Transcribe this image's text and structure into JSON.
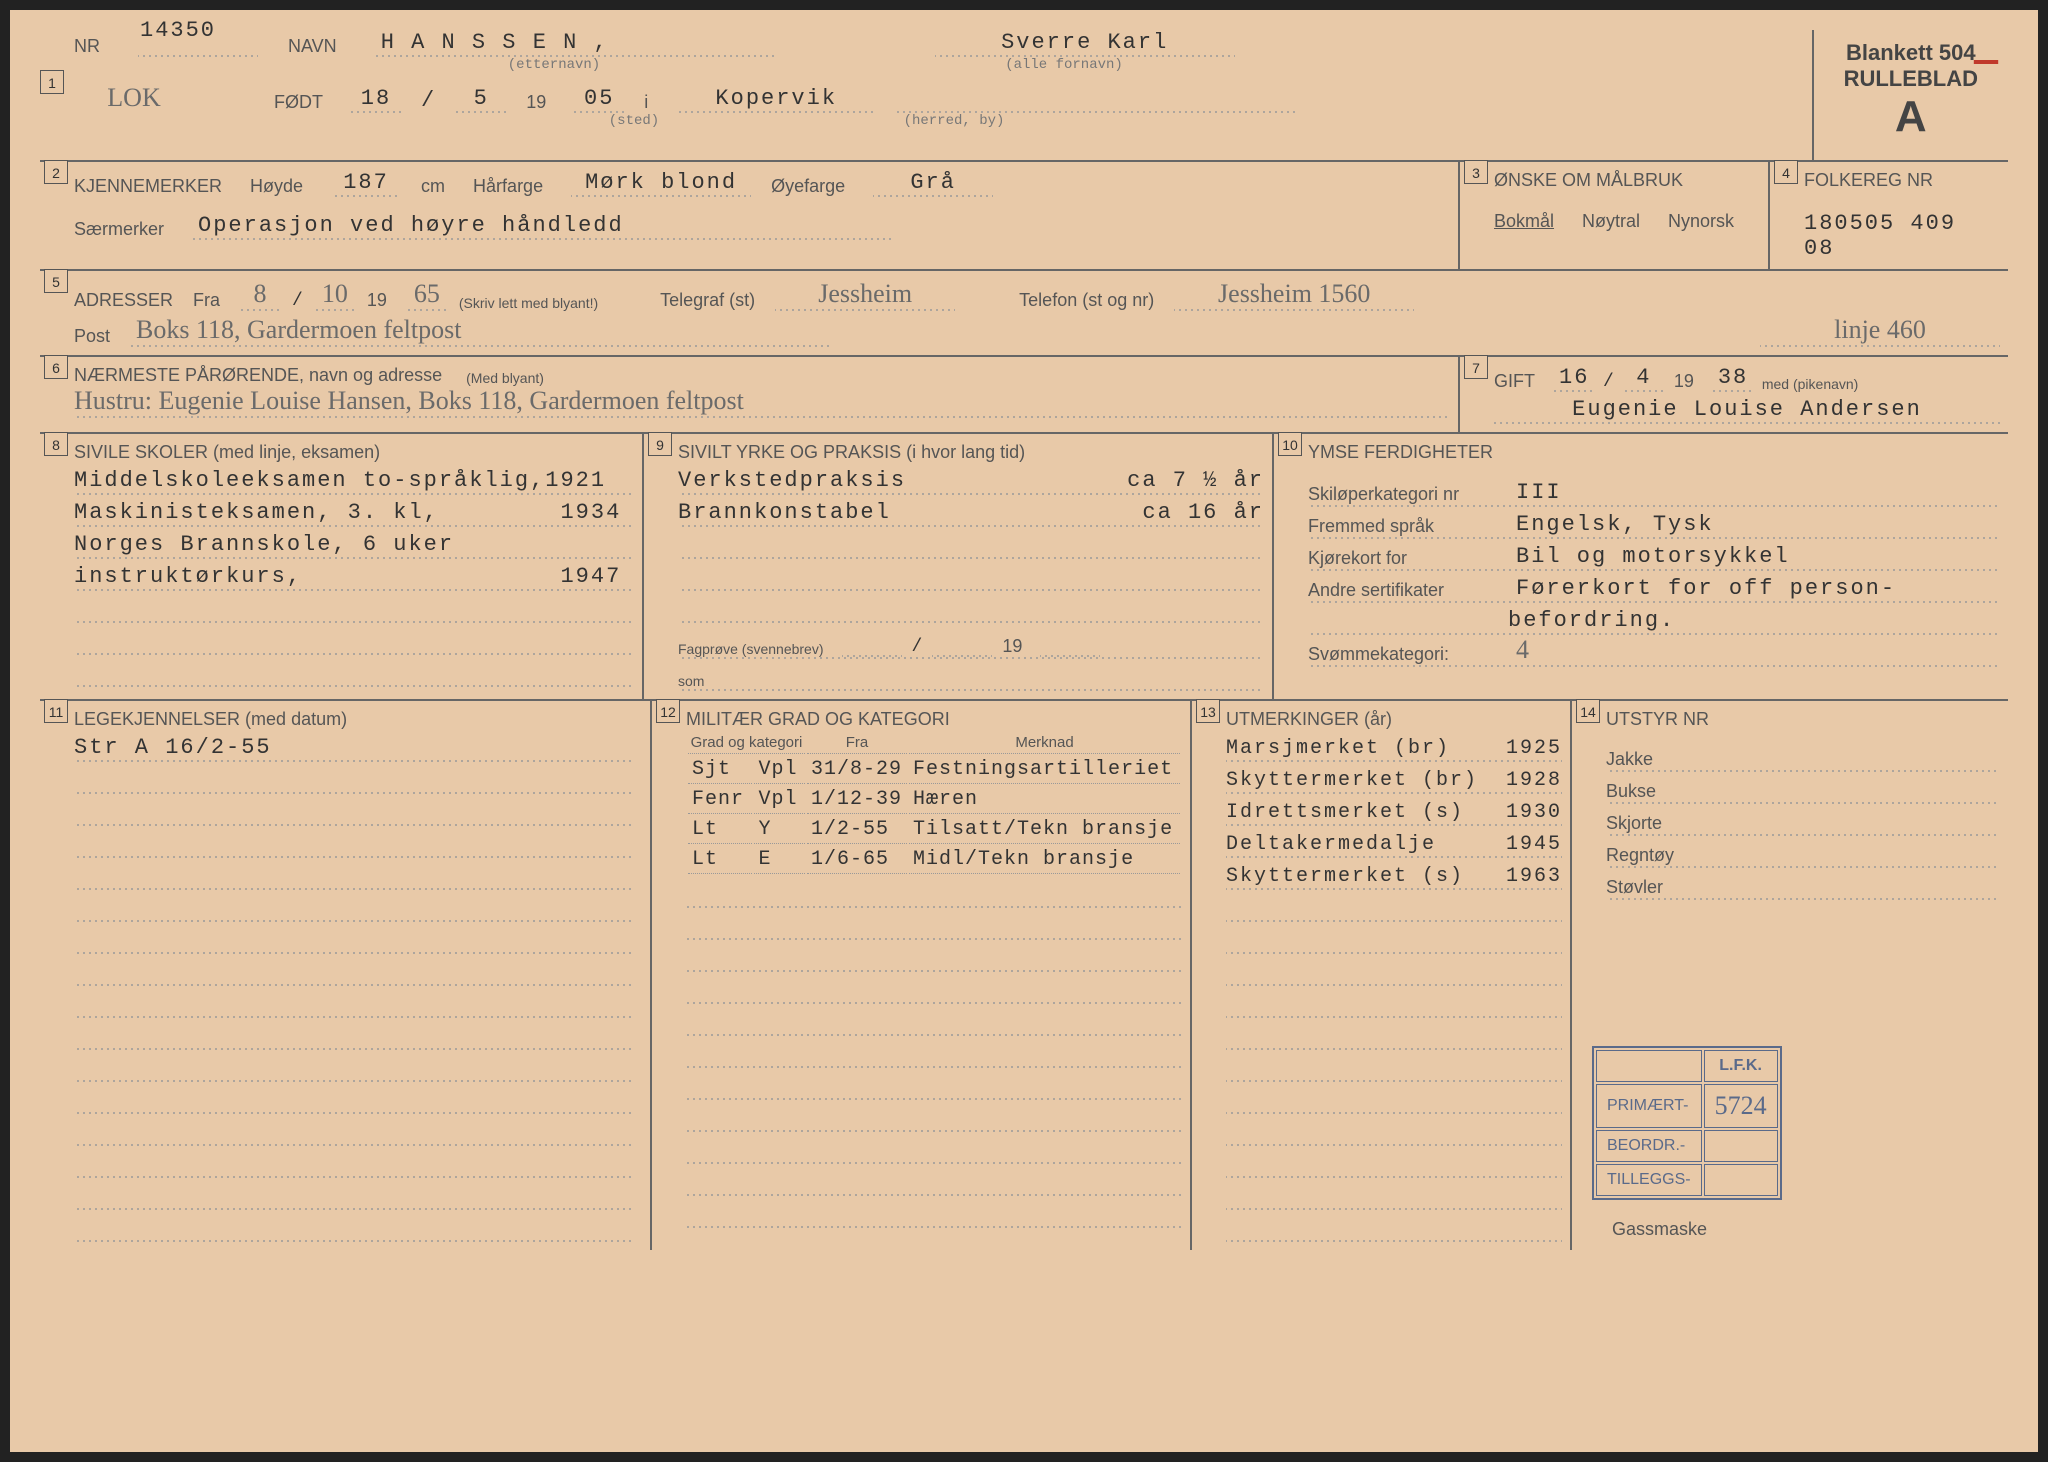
{
  "header": {
    "docnum": "14350",
    "nr_label": "NR",
    "nr_value": "LOK",
    "navn_label": "NAVN",
    "etternavn": "H A N S S E N ,",
    "etternavn_sub": "(etternavn)",
    "fornavn": "Sverre Karl",
    "fornavn_sub": "(alle fornavn)",
    "fodt_label": "FØDT",
    "fodt_day": "18",
    "fodt_month": "5",
    "fodt_year_prefix": "19",
    "fodt_year": "05",
    "fodt_i": "i",
    "fodt_sted": "Kopervik",
    "sted_sub": "(sted)",
    "herred_sub": "(herred, by)",
    "blankett": "Blankett 504",
    "rulleblad": "RULLEBLAD",
    "a": "A"
  },
  "sec2": {
    "title": "KJENNEMERKER",
    "hoyde_label": "Høyde",
    "hoyde": "187",
    "cm": "cm",
    "harfarge_label": "Hårfarge",
    "harfarge": "Mørk blond",
    "oyefarge_label": "Øyefarge",
    "oyefarge": "Grå",
    "saermerker_label": "Særmerker",
    "saermerker": "Operasjon ved høyre håndledd"
  },
  "sec3": {
    "title": "ØNSKE OM MÅLBRUK",
    "bokmal": "Bokmål",
    "noytral": "Nøytral",
    "nynorsk": "Nynorsk"
  },
  "sec4": {
    "title": "FOLKEREG NR",
    "value": "180505 409 08"
  },
  "sec5": {
    "title": "ADRESSER",
    "fra_label": "Fra",
    "fra_day": "8",
    "fra_month": "10",
    "fra_year_prefix": "19",
    "fra_year": "65",
    "skriv": "(Skriv lett med blyant!)",
    "telegraf_label": "Telegraf (st)",
    "telegraf": "Jessheim",
    "telefon_label": "Telefon (st og nr)",
    "telefon": "Jessheim 1560",
    "telefon2": "linje 460",
    "post_label": "Post",
    "post": "Boks 118, Gardermoen feltpost"
  },
  "sec6": {
    "title": "NÆRMESTE PÅRØRENDE, navn og adresse",
    "med": "(Med blyant)",
    "value": "Hustru: Eugenie Louise Hansen, Boks 118, Gardermoen feltpost"
  },
  "sec7": {
    "title": "GIFT",
    "day": "16",
    "month": "4",
    "year_prefix": "19",
    "year": "38",
    "med": "med (pikenavn)",
    "name": "Eugenie Louise Andersen"
  },
  "sec8": {
    "title": "SIVILE SKOLER (med linje, eksamen)",
    "lines": [
      "Middelskoleeksamen to-språklig,1921",
      "Maskinisteksamen, 3. kl,        1934",
      "Norges Brannskole, 6 uker",
      "instruktørkurs,                 1947"
    ]
  },
  "sec9": {
    "title": "SIVILT YRKE OG PRAKSIS (i hvor lang tid)",
    "lines": [
      [
        "Verkstedpraksis",
        "ca  7 ½ år"
      ],
      [
        "Brannkonstabel",
        "ca 16 år"
      ]
    ],
    "fagprove_label": "Fagprøve (svennebrev)",
    "fagprove_slash": "/",
    "fagprove_year": "19",
    "som_label": "som"
  },
  "sec10": {
    "title": "YMSE FERDIGHETER",
    "ski_label": "Skiløperkategori nr",
    "ski": "III",
    "sprak_label": "Fremmed språk",
    "sprak": "Engelsk, Tysk",
    "kjorekort_label": "Kjørekort for",
    "kjorekort": "Bil og motorsykkel",
    "andre_label": "Andre sertifikater",
    "andre": "Førerkort for off person-",
    "andre2": "befordring.",
    "svomme_label": "Svømmekategori:",
    "svomme": "4"
  },
  "sec11": {
    "title": "LEGEKJENNELSER (med datum)",
    "lines": [
      "Str A  16/2-55"
    ]
  },
  "sec12": {
    "title": "MILITÆR GRAD OG KATEGORI",
    "headers": [
      "Grad og kategori",
      "Fra",
      "Merknad"
    ],
    "rows": [
      [
        "Sjt",
        "Vpl",
        "31/8-29",
        "Festningsartilleriet"
      ],
      [
        "Fenr",
        "Vpl",
        "1/12-39",
        "Hæren"
      ],
      [
        "Lt",
        "Y",
        "1/2-55",
        "Tilsatt/Tekn bransje"
      ],
      [
        "Lt",
        "E",
        "1/6-65",
        "Midl/Tekn bransje"
      ]
    ]
  },
  "sec13": {
    "title": "UTMERKINGER (år)",
    "rows": [
      [
        "Marsjmerket (br)",
        "1925"
      ],
      [
        "Skyttermerket (br)",
        "1928"
      ],
      [
        "Idrettsmerket (s)",
        "1930"
      ],
      [
        "Deltakermedalje",
        "1945"
      ],
      [
        "Skyttermerket (s)",
        "1963"
      ]
    ]
  },
  "sec14": {
    "title": "UTSTYR NR",
    "items": [
      "Jakke",
      "Bukse",
      "Skjorte",
      "Regntøy",
      "Støvler"
    ],
    "gassmaske": "Gassmaske",
    "stamp": {
      "lfk": "L.F.K.",
      "primaert": "PRIMÆRT-",
      "primaert_val": "5724",
      "beordr": "BEORDR.-",
      "tilleggs": "TILLEGGS-"
    }
  }
}
